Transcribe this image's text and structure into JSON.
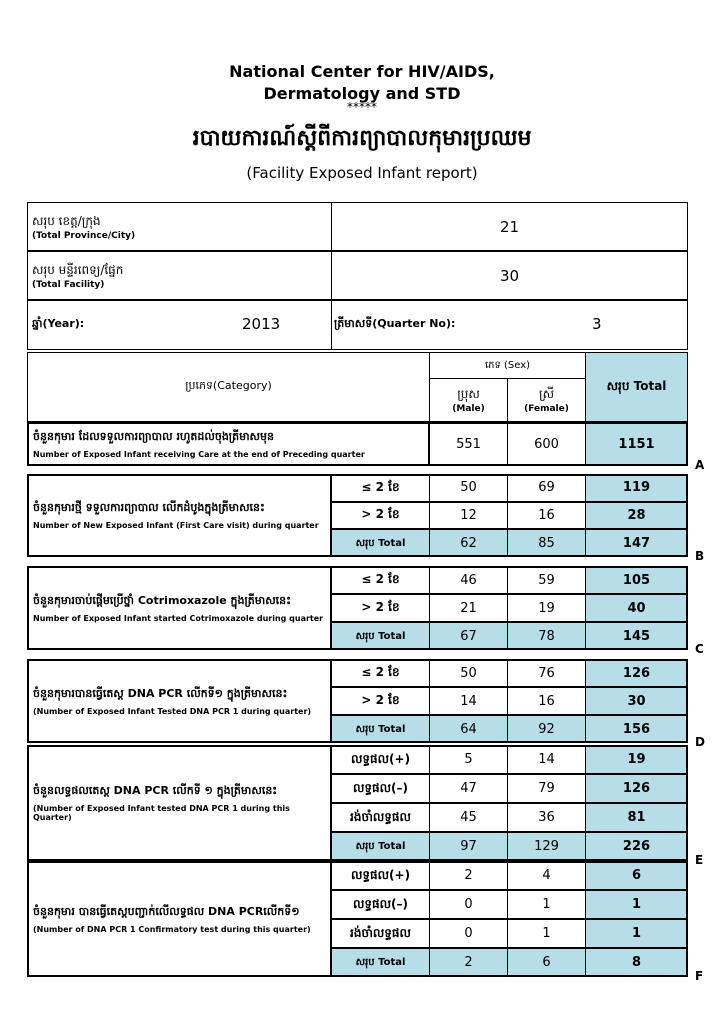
{
  "header": {
    "org": [
      "National Center for HIV/AIDS,",
      "Dermatology and STD"
    ],
    "stars": "*****",
    "title_km": "របាយការណ៍ស្តីពីការព្យាបាលកុមារប្រឈម",
    "title_en": "(Facility Exposed Infant report)"
  },
  "summary": {
    "province": {
      "label_km": "សរុប ខេត្ត/ក្រុង",
      "label_en": "(Total Province/City)",
      "value": 21
    },
    "facility": {
      "label_km": "សរុប មន្ទីរពេទ្យ/ផ្នែក",
      "label_en": "(Total Facility)",
      "value": 30
    },
    "year": {
      "label": "ឆ្នាំ(Year):",
      "value": 2013
    },
    "quarter": {
      "label": "ត្រីមាសទី(Quarter No):",
      "value": 3
    }
  },
  "table": {
    "headers": {
      "category": "ប្រភេទ(Category)",
      "sex": "ភេទ  (Sex)",
      "male_km": "ប្រុស",
      "male_en": "(Male)",
      "female_km": "ស្រី",
      "female_en": "(Female)",
      "total": "សរុប  Total"
    },
    "sections": [
      {
        "letter": "A",
        "label_km": "ចំនួនកុមារ ដែលទទួលការព្យាបាល រហូតដល់ចុងត្រីមាសមុន",
        "label_en": "Number of Exposed Infant receiving Care at the end of Preceding quarter",
        "rows": [
          {
            "values": [
              551,
              600,
              1151
            ]
          }
        ]
      },
      {
        "letter": "B",
        "label_km": "ចំនួនកុមារថ្មី ទទួលការព្យាបាល លើកដំបូងក្នុងត្រីមាសនេះ",
        "label_en": "Number of New Exposed Infant (First Care visit) during quarter",
        "rows": [
          {
            "label": "≤ 2 ខែ",
            "values": [
              50,
              69,
              119
            ]
          },
          {
            "label": "> 2 ខែ",
            "values": [
              12,
              16,
              28
            ]
          },
          {
            "label": "សរុប Total",
            "values": [
              62,
              85,
              147
            ]
          }
        ]
      },
      {
        "letter": "C",
        "label_km": "ចំនួនកុមារចាប់ផ្តើមប្រើថ្នាំ Cotrimoxazole ក្នុងត្រីមាសនេះ",
        "label_en": "Number of Exposed Infant started Cotrimoxazole during quarter",
        "rows": [
          {
            "label": "≤ 2 ខែ",
            "values": [
              46,
              59,
              105
            ]
          },
          {
            "label": "> 2 ខែ",
            "values": [
              21,
              19,
              40
            ]
          },
          {
            "label": "សរុប Total",
            "values": [
              67,
              78,
              145
            ]
          }
        ]
      },
      {
        "letter": "D",
        "label_km": "ចំនួនកុមារបានធ្វើតេស្ត  DNA PCR លើកទី១ ក្នុងត្រីមាសនេះ",
        "label_en": "(Number of Exposed Infant Tested DNA PCR 1 during quarter)",
        "rows": [
          {
            "label": "≤ 2 ខែ",
            "values": [
              50,
              76,
              126
            ]
          },
          {
            "label": "> 2 ខែ",
            "values": [
              14,
              16,
              30
            ]
          },
          {
            "label": "សរុប Total",
            "values": [
              64,
              92,
              156
            ]
          }
        ]
      },
      {
        "letter": "E",
        "label_km": "ចំនួនលទ្ធផលតេស្ត DNA PCR លើកទី ១ ក្នុងត្រីមាសនេះ",
        "label_en": "(Number of Exposed Infant tested DNA PCR 1 during this Quarter)",
        "rows": [
          {
            "label": "លទ្ធផល(+)",
            "values": [
              5,
              14,
              19
            ]
          },
          {
            "label": "លទ្ធផល(–)",
            "values": [
              47,
              79,
              126
            ]
          },
          {
            "label": "រង់ចាំលទ្ធផល",
            "values": [
              45,
              36,
              81
            ]
          },
          {
            "label": "សរុប Total",
            "values": [
              97,
              129,
              226
            ]
          }
        ]
      },
      {
        "letter": "F",
        "label_km": "ចំនួនកុមារ បានធ្វើតេស្តបញ្ជាក់លើលទ្ធផល DNA PCRលើកទី១",
        "label_en": "(Number of DNA PCR 1 Confirmatory test during this quarter)",
        "rows": [
          {
            "label": "លទ្ធផល(+)",
            "values": [
              2,
              4,
              6
            ]
          },
          {
            "label": "លទ្ធផល(–)",
            "values": [
              0,
              1,
              1
            ]
          },
          {
            "label": "រង់ចាំលទ្ធផល",
            "values": [
              0,
              1,
              1
            ]
          },
          {
            "label": "សរុប Total",
            "values": [
              2,
              6,
              8
            ]
          }
        ]
      }
    ]
  }
}
